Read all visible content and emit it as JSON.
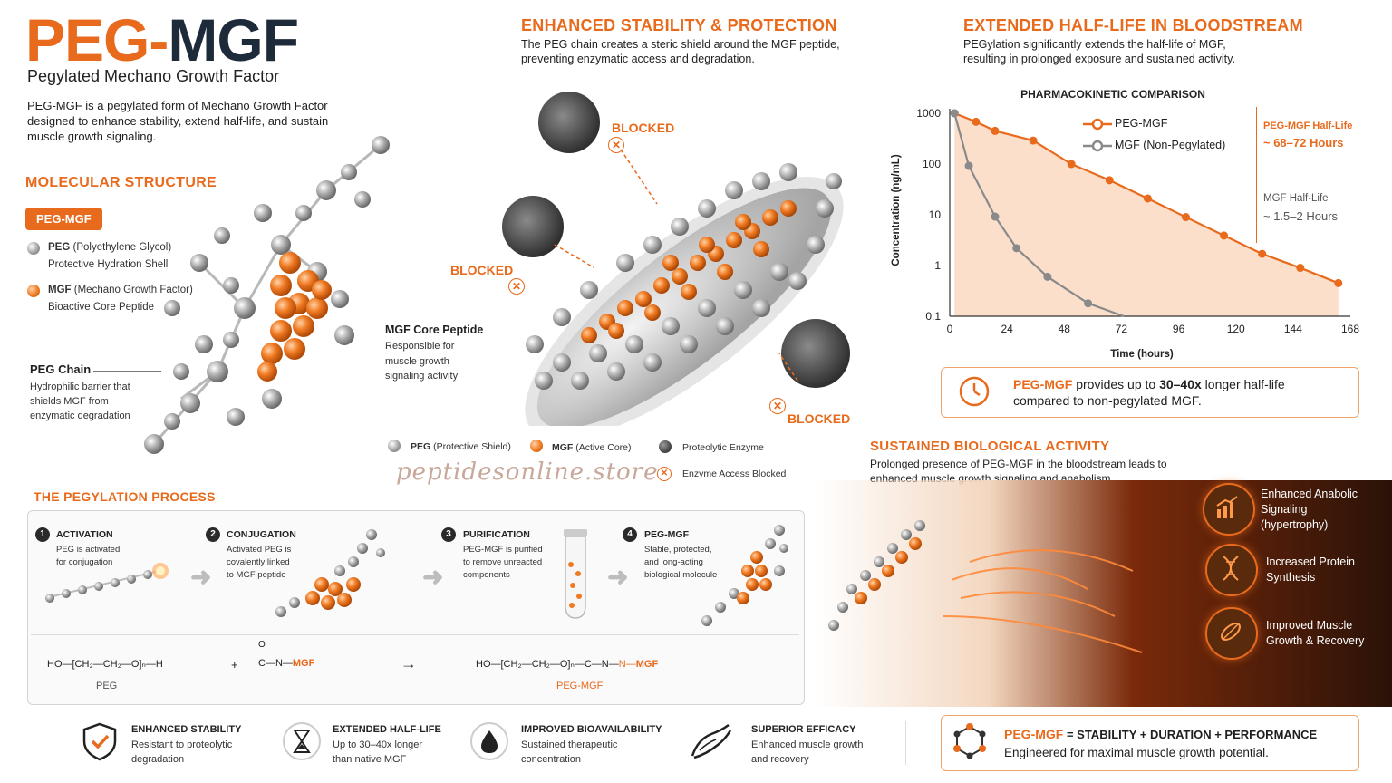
{
  "header": {
    "title_peg": "PEG",
    "title_dash": "-",
    "title_mgf": "MGF",
    "subtitle": "Pegylated Mechano Growth Factor",
    "intro": "PEG-MGF is a pegylated form of Mechano Growth Factor designed to enhance stability, extend half-life, and sustain muscle growth signaling."
  },
  "molecular": {
    "title": "MOLECULAR STRUCTURE",
    "badge": "PEG-MGF",
    "legend": [
      {
        "name": "PEG",
        "detail": " (Polyethylene Glycol)",
        "sub": "Protective Hydration Shell"
      },
      {
        "name": "MGF",
        "detail": " (Mechano Growth Factor)",
        "sub": "Bioactive Core Peptide"
      }
    ],
    "peg_chain": {
      "title": "PEG Chain",
      "desc": "Hydrophilic barrier that shields MGF from enzymatic degradation"
    },
    "mgf_core": {
      "title": "MGF Core Peptide",
      "desc": "Responsible for muscle growth signaling activity"
    }
  },
  "stability": {
    "title": "ENHANCED STABILITY & PROTECTION",
    "desc": "The PEG chain creates a steric shield around the MGF peptide, preventing enzymatic access and degradation.",
    "blocked": "BLOCKED",
    "legend": [
      {
        "name": "PEG",
        "detail": " (Protective Shield)"
      },
      {
        "name": "MGF",
        "detail": " (Active Core)"
      },
      {
        "name": "",
        "detail": "Proteolytic Enzyme"
      },
      {
        "name": "",
        "detail": "Enzyme Access Blocked"
      }
    ],
    "watermark": "peptidesonline.store"
  },
  "halflife": {
    "title": "EXTENDED HALF-LIFE IN BLOODSTREAM",
    "desc": "PEGylation significantly extends the half-life of MGF, resulting in prolonged exposure and sustained activity.",
    "callout_bold": "PEG-MGF",
    "callout_rest": " provides up to ",
    "callout_emph": "30–40x",
    "callout_end": " longer half-life",
    "callout_line2": "compared to non-pegylated MGF."
  },
  "chart_data": {
    "type": "line",
    "title": "PHARMACOKINETIC COMPARISON",
    "xlabel": "Time (hours)",
    "ylabel": "Concentration (ng/mL)",
    "x_ticks": [
      "0",
      "24",
      "48",
      "72",
      "96",
      "120",
      "144",
      "168"
    ],
    "y_ticks": [
      "1000",
      "100",
      "10",
      "1",
      "0.1"
    ],
    "xlim": [
      0,
      168
    ],
    "ylim": [
      0.1,
      1000
    ],
    "y_scale": "log",
    "legend_position": "top-center",
    "series": [
      {
        "name": "PEG-MGF",
        "color": "#e86a1c",
        "x": [
          2,
          11,
          19,
          35,
          51,
          67,
          83,
          99,
          115,
          131,
          147,
          163
        ],
        "y": [
          1000,
          680,
          450,
          290,
          100,
          48,
          21,
          9,
          3.9,
          1.7,
          0.9,
          0.45
        ]
      },
      {
        "name": "MGF (Non-Pegylated)",
        "color": "#8a8a8a",
        "x": [
          2,
          8,
          19,
          28,
          41,
          58,
          73
        ],
        "y": [
          1000,
          92,
          9.2,
          2.2,
          0.6,
          0.18,
          0.1
        ]
      }
    ],
    "annotations": [
      {
        "label": "PEG-MGF Half-Life",
        "value": "~ 68–72 Hours"
      },
      {
        "label": "MGF Half-Life",
        "value": "~ 1.5–2 Hours"
      }
    ]
  },
  "process": {
    "title": "THE PEGYLATION PROCESS",
    "steps": [
      {
        "num": "1",
        "title": "ACTIVATION",
        "desc": "PEG is activated for conjugation"
      },
      {
        "num": "2",
        "title": "CONJUGATION",
        "desc": "Activated PEG is covalently linked to MGF peptide"
      },
      {
        "num": "3",
        "title": "PURIFICATION",
        "desc": "PEG-MGF is purified to remove unreacted components"
      },
      {
        "num": "4",
        "title": "PEG-MGF",
        "desc": "Stable, protected, and long-acting biological molecule"
      }
    ],
    "chem": {
      "peg_formula": "HO—[CH₂—CH₂—O]ₙ—H",
      "peg_label": "PEG",
      "plus": "+",
      "mgf_formula": "C—N—",
      "mgf_tag": "MGF",
      "o_label": "O",
      "arrow": "→",
      "product_formula": "HO—[CH₂—CH₂—O]ₙ—C—N—",
      "product_n": "N—",
      "product_tag": "MGF",
      "product_label": "PEG-MGF"
    }
  },
  "bio": {
    "title": "SUSTAINED BIOLOGICAL ACTIVITY",
    "desc": "Prolonged presence of PEG-MGF in the bloodstream leads to enhanced muscle growth signaling and anabolism.",
    "items": [
      {
        "icon": "bar-chart-up-icon",
        "label": "Enhanced Anabolic Signaling (hypertrophy)"
      },
      {
        "icon": "dna-icon",
        "label": "Increased Protein Synthesis"
      },
      {
        "icon": "muscle-fiber-icon",
        "label": "Improved Muscle Growth & Recovery"
      }
    ]
  },
  "benefits": [
    {
      "icon": "shield-check-icon",
      "title": "ENHANCED STABILITY",
      "desc": "Resistant to proteolytic degradation"
    },
    {
      "icon": "hourglass-icon",
      "title": "EXTENDED HALF-LIFE",
      "desc": "Up to 30–40x longer than native MGF"
    },
    {
      "icon": "drop-icon",
      "title": "IMPROVED BIOAVAILABILITY",
      "desc": "Sustained therapeutic concentration"
    },
    {
      "icon": "muscle-icon",
      "title": "SUPERIOR EFFICACY",
      "desc": "Enhanced muscle growth and recovery"
    }
  ],
  "summary": {
    "brand": "PEG-MGF",
    "formula": " = STABILITY + DURATION + PERFORMANCE",
    "tagline": "Engineered for maximal muscle growth potential."
  },
  "colors": {
    "accent": "#e86a1c",
    "dark": "#1d2a3a",
    "grey": "#8a8a8a"
  }
}
